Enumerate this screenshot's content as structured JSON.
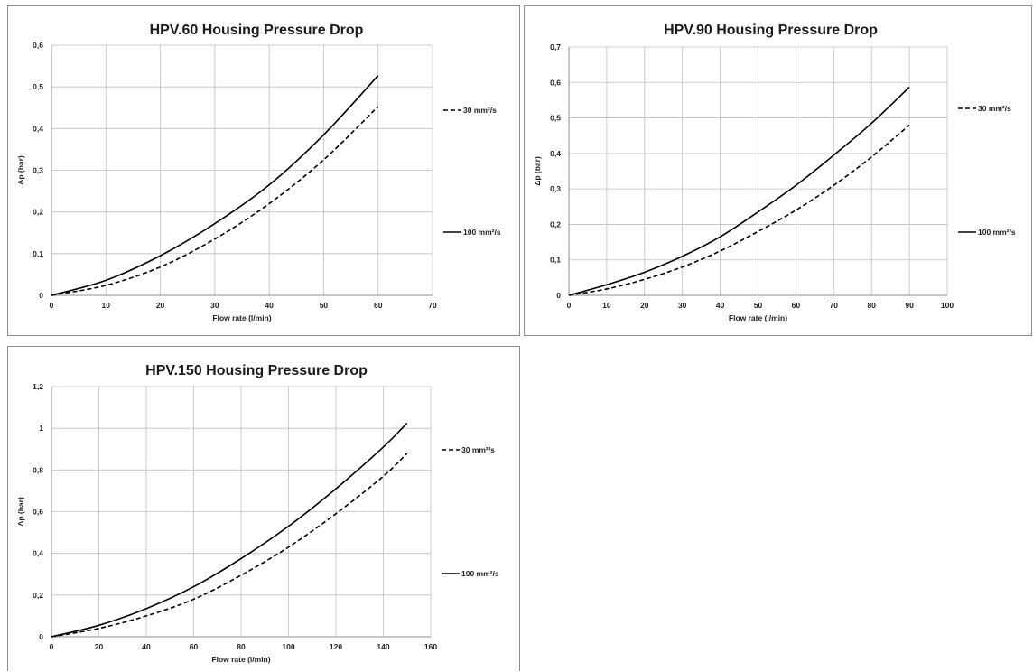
{
  "colors": {
    "series_line": "#000000",
    "grid": "#bfbfbf",
    "axis": "#8c8c8c"
  },
  "chart_data": [
    {
      "type": "line",
      "title": "HPV.60 Housing Pressure Drop",
      "xlabel": "Flow rate (l/min)",
      "ylabel": "Δp (bar)",
      "xlim": [
        0,
        70
      ],
      "ylim": [
        0,
        0.6
      ],
      "x_ticks": [
        0,
        10,
        20,
        30,
        40,
        50,
        60,
        70
      ],
      "y_ticks": [
        0,
        0.1,
        0.2,
        0.3,
        0.4,
        0.5,
        0.6
      ],
      "x_tick_labels": [
        "0",
        "10",
        "20",
        "30",
        "40",
        "50",
        "60",
        "70"
      ],
      "y_tick_labels": [
        "0",
        "0,1",
        "0,2",
        "0,3",
        "0,4",
        "0,5",
        "0,6"
      ],
      "grid": true,
      "legend_position": "right",
      "series": [
        {
          "name": "30 mm²/s",
          "style": "dashed",
          "x": [
            0,
            10,
            20,
            30,
            40,
            50,
            60
          ],
          "y": [
            0,
            0.024,
            0.068,
            0.135,
            0.22,
            0.325,
            0.453
          ]
        },
        {
          "name": "100 mm²/s",
          "style": "solid",
          "x": [
            0,
            10,
            20,
            30,
            40,
            50,
            60
          ],
          "y": [
            0,
            0.036,
            0.095,
            0.172,
            0.265,
            0.385,
            0.527
          ]
        }
      ]
    },
    {
      "type": "line",
      "title": "HPV.90 Housing Pressure Drop",
      "xlabel": "Flow rate (l/min)",
      "ylabel": "Δp (bar)",
      "xlim": [
        0,
        100
      ],
      "ylim": [
        0,
        0.7
      ],
      "x_ticks": [
        0,
        10,
        20,
        30,
        40,
        50,
        60,
        70,
        80,
        90,
        100
      ],
      "y_ticks": [
        0,
        0.1,
        0.2,
        0.3,
        0.4,
        0.5,
        0.6,
        0.7
      ],
      "x_tick_labels": [
        "0",
        "10",
        "20",
        "30",
        "40",
        "50",
        "60",
        "70",
        "80",
        "90",
        "100"
      ],
      "y_tick_labels": [
        "0",
        "0,1",
        "0,2",
        "0,3",
        "0,4",
        "0,5",
        "0,6",
        "0,7"
      ],
      "grid": true,
      "legend_position": "right",
      "series": [
        {
          "name": "30 mm²/s",
          "style": "dashed",
          "x": [
            0,
            10,
            20,
            30,
            40,
            50,
            60,
            70,
            80,
            90
          ],
          "y": [
            0,
            0.018,
            0.045,
            0.08,
            0.125,
            0.18,
            0.24,
            0.31,
            0.39,
            0.48
          ]
        },
        {
          "name": "100 mm²/s",
          "style": "solid",
          "x": [
            0,
            10,
            20,
            30,
            40,
            50,
            60,
            70,
            80,
            90
          ],
          "y": [
            0,
            0.03,
            0.065,
            0.11,
            0.165,
            0.235,
            0.31,
            0.395,
            0.485,
            0.587
          ]
        }
      ]
    },
    {
      "type": "line",
      "title": "HPV.150 Housing Pressure Drop",
      "xlabel": "Flow rate (l/min)",
      "ylabel": "Δp (bar)",
      "xlim": [
        0,
        160
      ],
      "ylim": [
        0,
        1.2
      ],
      "x_ticks": [
        0,
        20,
        40,
        60,
        80,
        100,
        120,
        140,
        160
      ],
      "y_ticks": [
        0,
        0.2,
        0.4,
        0.6,
        0.8,
        1.0,
        1.2
      ],
      "x_tick_labels": [
        "0",
        "20",
        "40",
        "60",
        "80",
        "100",
        "120",
        "140",
        "160"
      ],
      "y_tick_labels": [
        "0",
        "0,2",
        "0,4",
        "0,6",
        "0,8",
        "1",
        "1,2"
      ],
      "grid": true,
      "legend_position": "right",
      "series": [
        {
          "name": "30 mm²/s",
          "style": "dashed",
          "x": [
            0,
            20,
            40,
            60,
            80,
            100,
            120,
            140,
            150
          ],
          "y": [
            0,
            0.04,
            0.1,
            0.18,
            0.295,
            0.43,
            0.59,
            0.77,
            0.88
          ]
        },
        {
          "name": "100 mm²/s",
          "style": "solid",
          "x": [
            0,
            20,
            40,
            60,
            80,
            100,
            120,
            140,
            150
          ],
          "y": [
            0,
            0.055,
            0.135,
            0.24,
            0.375,
            0.53,
            0.71,
            0.91,
            1.025
          ]
        }
      ]
    }
  ]
}
